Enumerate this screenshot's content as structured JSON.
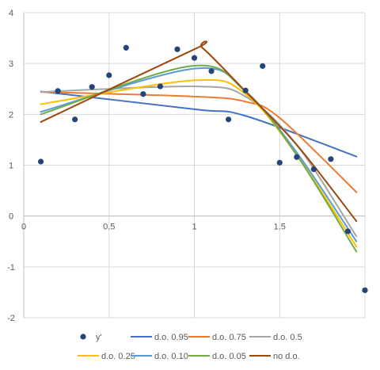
{
  "chart_data": {
    "type": "scatter",
    "title": "",
    "xlabel": "",
    "ylabel": "",
    "xlim": [
      0,
      2
    ],
    "ylim": [
      -2,
      4
    ],
    "xticks": [
      0,
      0.5,
      1,
      1.5
    ],
    "xtick_labels": [
      "0",
      "0.5",
      "1",
      "1.5"
    ],
    "yticks": [
      -2,
      -1,
      0,
      1,
      2,
      3,
      4
    ],
    "ytick_labels": [
      "-2",
      "-1",
      "0",
      "1",
      "2",
      "3",
      "4"
    ],
    "grid": true,
    "legend_position": "bottom",
    "scatter": {
      "name": "y'",
      "color": "#264478",
      "points": [
        [
          0.1,
          1.07
        ],
        [
          0.2,
          2.46
        ],
        [
          0.3,
          1.9
        ],
        [
          0.4,
          2.54
        ],
        [
          0.5,
          2.77
        ],
        [
          0.6,
          3.31
        ],
        [
          0.7,
          2.4
        ],
        [
          0.8,
          2.55
        ],
        [
          0.9,
          3.28
        ],
        [
          1.0,
          3.11
        ],
        [
          1.1,
          2.85
        ],
        [
          1.2,
          1.9
        ],
        [
          1.3,
          2.47
        ],
        [
          1.4,
          2.95
        ],
        [
          1.5,
          1.05
        ],
        [
          1.6,
          1.16
        ],
        [
          1.7,
          0.92
        ],
        [
          1.8,
          1.12
        ],
        [
          1.9,
          -0.3
        ],
        [
          2.0,
          -1.46
        ]
      ]
    },
    "series": [
      {
        "name": "d.o. 0.95",
        "color": "#4472C4",
        "points": [
          [
            0.1,
            2.45
          ],
          [
            1.0,
            2.1
          ],
          [
            1.3,
            1.97
          ],
          [
            1.95,
            1.17
          ]
        ]
      },
      {
        "name": "d.o. 0.75",
        "color": "#ED7D31",
        "points": [
          [
            0.1,
            2.44
          ],
          [
            1.0,
            2.35
          ],
          [
            1.3,
            2.25
          ],
          [
            1.5,
            1.93
          ],
          [
            1.95,
            0.47
          ]
        ]
      },
      {
        "name": "d.o. 0.5",
        "color": "#A5A5A5",
        "points": [
          [
            0.1,
            2.44
          ],
          [
            1.0,
            2.55
          ],
          [
            1.3,
            2.35
          ],
          [
            1.6,
            1.4
          ],
          [
            1.95,
            -0.4
          ]
        ]
      },
      {
        "name": "d.o. 0.25",
        "color": "#FFC000",
        "points": [
          [
            0.1,
            2.2
          ],
          [
            1.0,
            2.67
          ],
          [
            1.3,
            2.4
          ],
          [
            1.6,
            1.2
          ],
          [
            1.95,
            -0.6
          ]
        ]
      },
      {
        "name": "d.o. 0.10",
        "color": "#5B9BD5",
        "points": [
          [
            0.1,
            2.05
          ],
          [
            1.0,
            2.9
          ],
          [
            1.3,
            2.45
          ],
          [
            1.6,
            1.25
          ],
          [
            1.95,
            -0.5
          ]
        ]
      },
      {
        "name": "d.o. 0.05",
        "color": "#70AD47",
        "points": [
          [
            0.1,
            2.0
          ],
          [
            0.98,
            2.95
          ],
          [
            1.3,
            2.45
          ],
          [
            1.6,
            1.2
          ],
          [
            1.95,
            -0.7
          ]
        ]
      },
      {
        "name": "no d.o.",
        "color": "#9E480E",
        "points": [
          [
            0.1,
            1.85
          ],
          [
            1.0,
            3.28
          ],
          [
            1.05,
            3.3
          ],
          [
            1.3,
            2.45
          ],
          [
            1.6,
            1.4
          ],
          [
            1.95,
            -0.1
          ]
        ]
      }
    ]
  }
}
